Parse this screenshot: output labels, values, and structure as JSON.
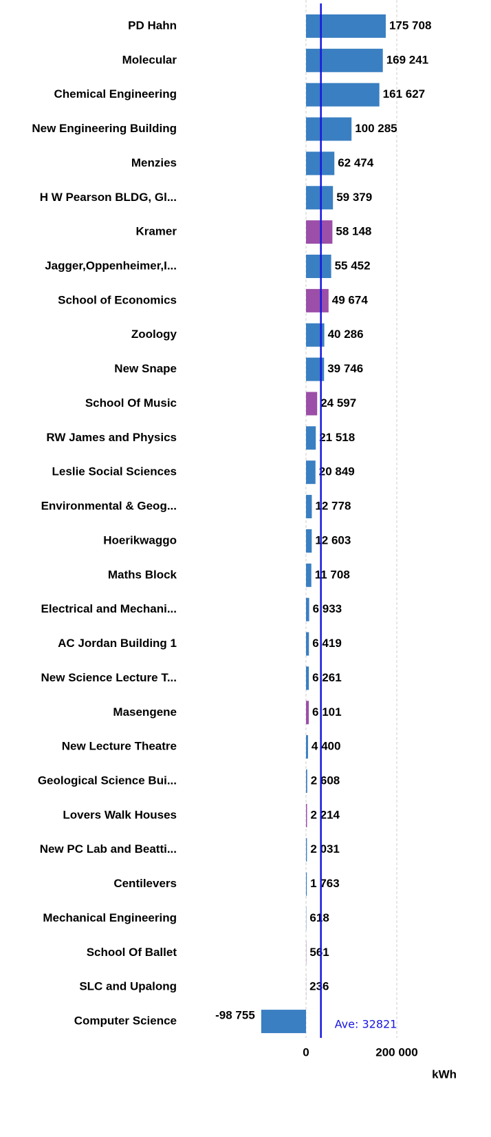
{
  "chart_data": {
    "type": "barh",
    "categories": [
      "PD Hahn",
      "Molecular",
      "Chemical Engineering",
      "New Engineering Building",
      "Menzies",
      "H W Pearson BLDG, Gl...",
      "Kramer",
      "Jagger,Oppenheimer,I...",
      "School of Economics",
      "Zoology",
      "New Snape",
      "School Of Music",
      "RW James and Physics",
      "Leslie Social Sciences",
      "Environmental & Geog...",
      "Hoerikwaggo",
      "Maths Block",
      "Electrical and Mechani...",
      "AC Jordan Building 1",
      "New Science Lecture T...",
      "Masengene",
      "New Lecture Theatre",
      "Geological Science Bui...",
      "Lovers Walk Houses",
      "New PC Lab and Beatti...",
      "Centilevers",
      "Mechanical Engineering",
      "School Of Ballet",
      "SLC and Upalong",
      "Computer Science"
    ],
    "values": [
      175708,
      169241,
      161627,
      100285,
      62474,
      59379,
      58148,
      55452,
      49674,
      40286,
      39746,
      24597,
      21518,
      20849,
      12778,
      12603,
      11708,
      6933,
      6419,
      6261,
      6101,
      4400,
      2608,
      2214,
      2031,
      1763,
      618,
      561,
      236,
      -98755
    ],
    "value_labels": [
      "175 708",
      "169 241",
      "161 627",
      "100 285",
      "62 474",
      "59 379",
      "58 148",
      "55 452",
      "49 674",
      "40 286",
      "39 746",
      "24 597",
      "21 518",
      "20 849",
      "12 778",
      "12 603",
      "11 708",
      "6 933",
      "6 419",
      "6 261",
      "6 101",
      "4 400",
      "2 608",
      "2 214",
      "2 031",
      "1 763",
      "618",
      "561",
      "236",
      "-98 755"
    ],
    "colors": [
      "#3a7fc1",
      "#3a7fc1",
      "#3a7fc1",
      "#3a7fc1",
      "#3a7fc1",
      "#3a7fc1",
      "#9b4fa8",
      "#3a7fc1",
      "#9b4fa8",
      "#3a7fc1",
      "#3a7fc1",
      "#9b4fa8",
      "#3a7fc1",
      "#3a7fc1",
      "#3a7fc1",
      "#3a7fc1",
      "#3a7fc1",
      "#3a7fc1",
      "#3a7fc1",
      "#3a7fc1",
      "#9b4fa8",
      "#3a7fc1",
      "#3a7fc1",
      "#9b4fa8",
      "#3a7fc1",
      "#3a7fc1",
      "#3a7fc1",
      "#9b4fa8",
      "#9b4fa8",
      "#3a7fc1"
    ],
    "xlim": [
      -250000,
      375000
    ],
    "xticks": [
      0,
      {
        "value": 200000,
        "label": "200 000"
      }
    ],
    "xlabel": "kWh",
    "grid": true,
    "average": {
      "value": 32821,
      "label": "Ave: 32821",
      "color": "#1515e0"
    }
  }
}
